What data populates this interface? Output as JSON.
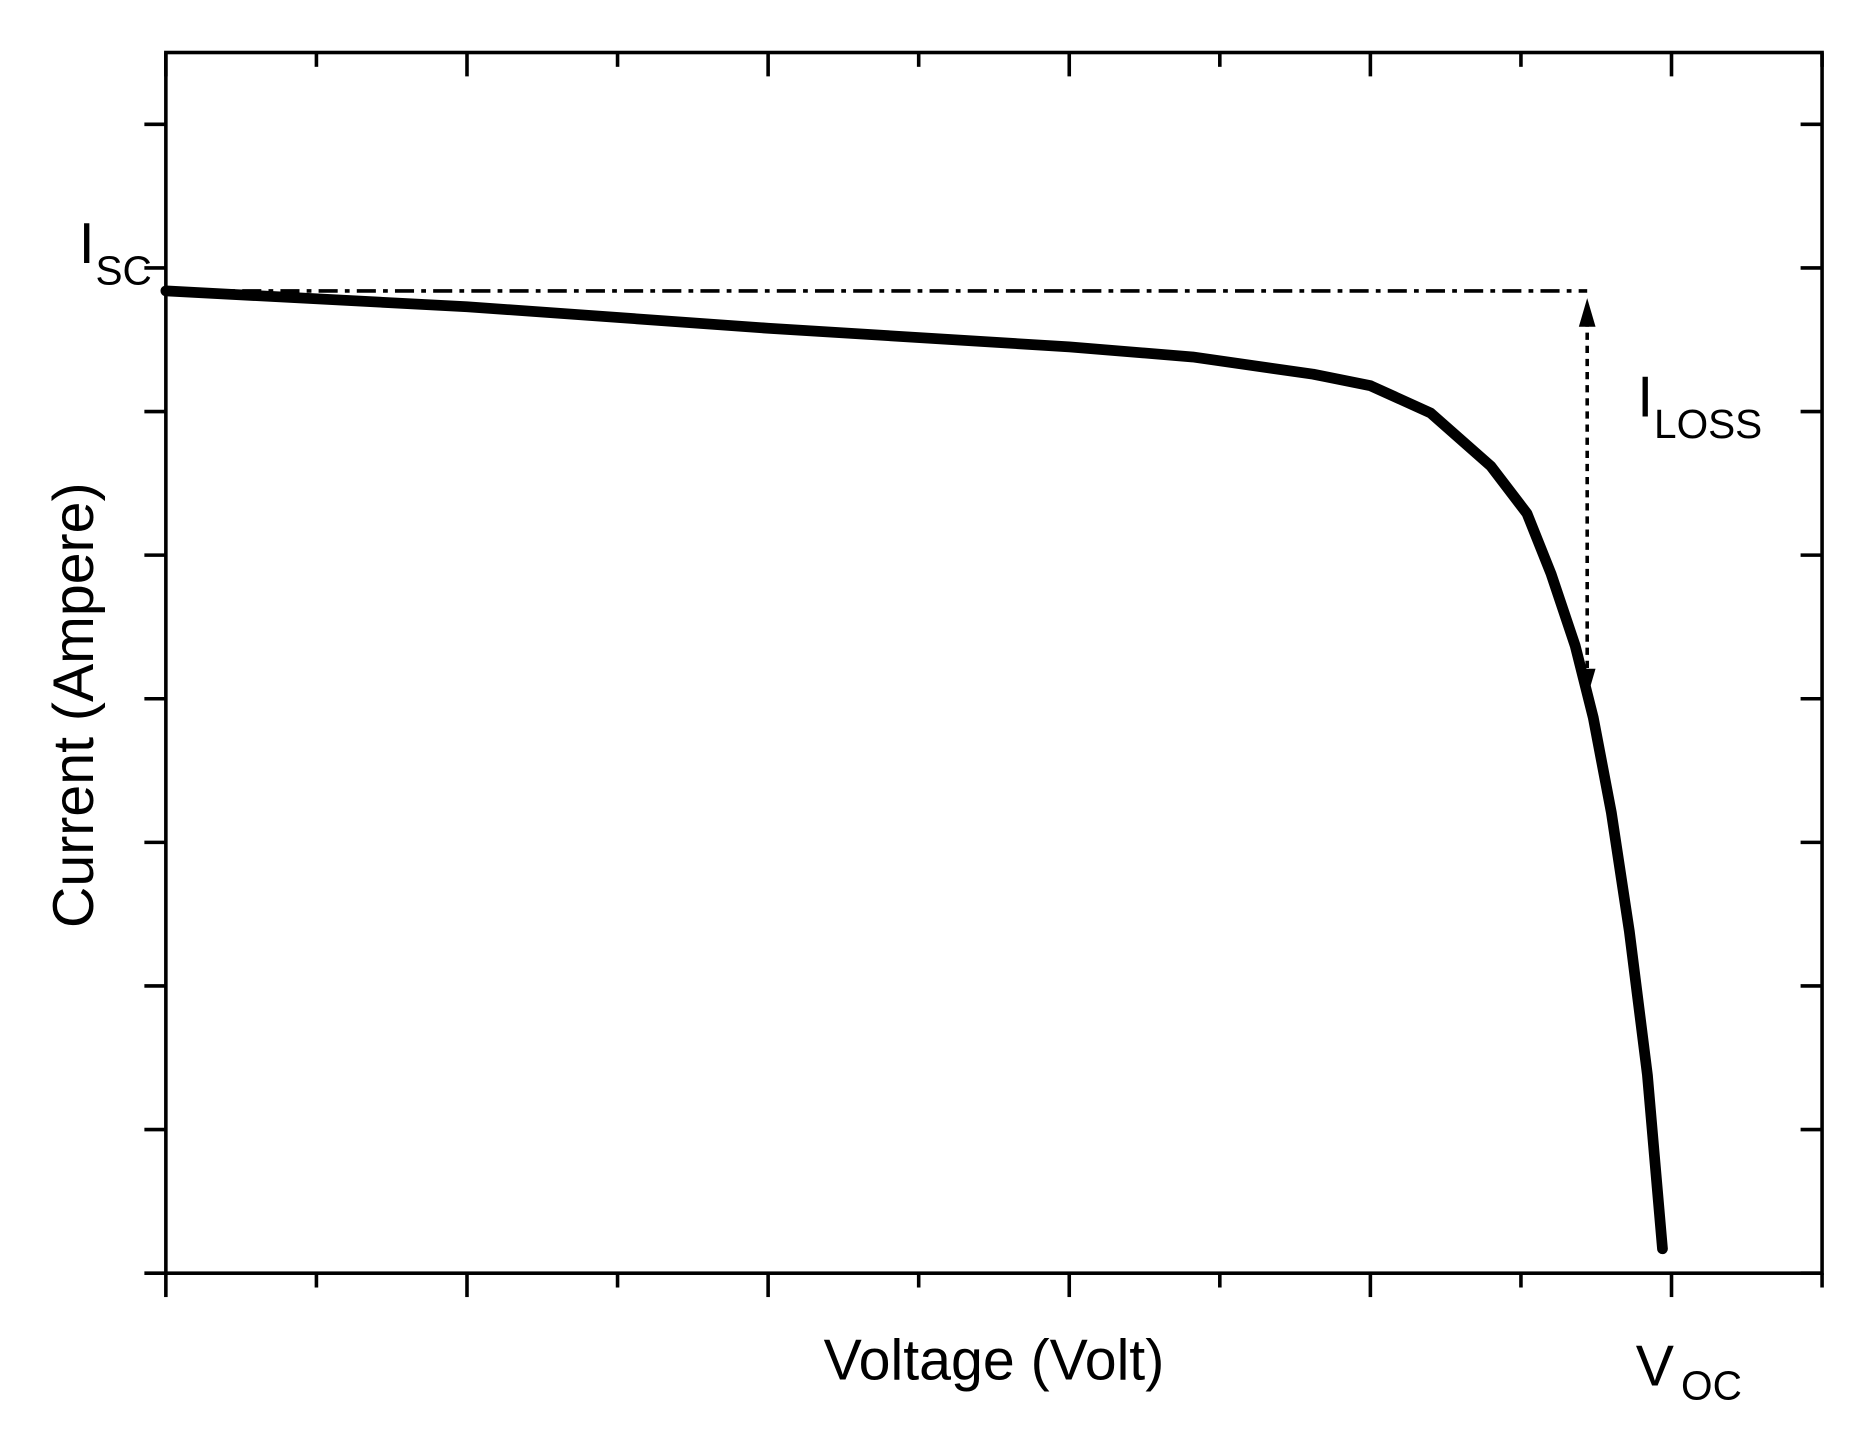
{
  "chart_data": {
    "type": "line",
    "x_label": "Voltage (Volt)",
    "y_label": "Current (Ampere)",
    "xlim": [
      0,
      5.5
    ],
    "ylim": [
      0,
      8.5
    ],
    "xticks": [
      0,
      0.5,
      1,
      1.5,
      2,
      2.5,
      3,
      3.5,
      4,
      4.5,
      {
        "value": 5,
        "label": "V",
        "sub": "OC"
      },
      5.5
    ],
    "yticks": [
      0,
      1,
      2,
      3,
      4,
      5,
      6,
      {
        "value": 7,
        "label": "I",
        "sub": "SC"
      },
      8
    ],
    "series": [
      {
        "color": "#000000",
        "x": [
          0,
          1.0,
          2.0,
          3.0,
          3.41,
          3.81,
          4.0,
          4.2,
          4.4,
          4.52,
          4.6,
          4.68,
          4.74,
          4.8,
          4.86,
          4.92,
          4.97
        ],
        "values": [
          6.84,
          6.73,
          6.58,
          6.45,
          6.38,
          6.26,
          6.18,
          5.99,
          5.62,
          5.29,
          4.87,
          4.37,
          3.87,
          3.21,
          2.38,
          1.38,
          0.17
        ]
      }
    ],
    "isc_line": {
      "x": [
        0,
        4.72
      ],
      "y": [
        6.84,
        6.84
      ]
    },
    "loss_arrow": {
      "x": 4.72,
      "y": [
        6.84,
        3.96
      ],
      "label": "I",
      "sub": "LOSS"
    }
  }
}
